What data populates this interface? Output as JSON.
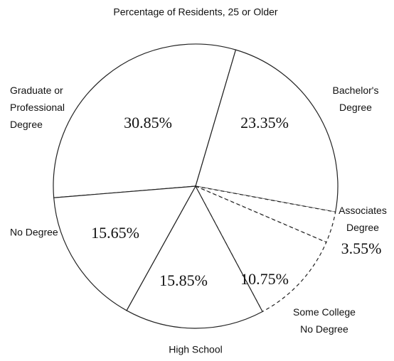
{
  "chart_data": {
    "type": "pie",
    "title": "Percentage of Residents, 25 or Older",
    "categories": [
      "Graduate or\nProfessional\nDegree",
      "Bachelor's\nDegree",
      "Associates\nDegree",
      "Some College\nNo Degree",
      "High School",
      "No Degree"
    ],
    "values": [
      30.85,
      23.35,
      3.55,
      10.75,
      15.85,
      15.65
    ],
    "value_labels": [
      "30.85%",
      "23.35%",
      "3.55%",
      "10.75%",
      "15.85%",
      "15.65%"
    ],
    "color": "#ffffff"
  }
}
